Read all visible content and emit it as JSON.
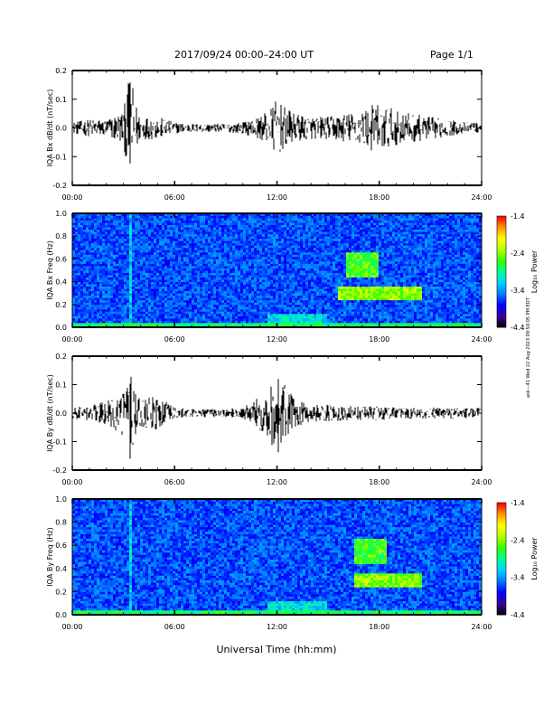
{
  "header": {
    "date_range": "2017/09/24  00:00–24:00 UT",
    "page": "Page 1/1"
  },
  "stamp": "ask—41 Wed 22 Aug 2023 09:50:05 PM EDT",
  "x_axis": {
    "label": "Universal Time (hh:mm)",
    "ticks": [
      "00:00",
      "06:00",
      "12:00",
      "18:00",
      "24:00"
    ],
    "range_hours": [
      0,
      24
    ]
  },
  "colorbar": {
    "label": "Log₁₀ Power",
    "ticks": [
      "-1.4",
      "-2.4",
      "-3.4",
      "-4.4"
    ],
    "range": [
      -4.4,
      -1.4
    ],
    "colors": [
      "#000000",
      "#3c0096",
      "#0000ff",
      "#0078ff",
      "#00d2ff",
      "#00ff96",
      "#32ff00",
      "#b4ff00",
      "#ffff00",
      "#ff9600",
      "#ff0000"
    ]
  },
  "chart_data": [
    {
      "type": "line",
      "ylabel": "IQA Bx dB/dt (nT/sec)",
      "ylim": [
        -0.2,
        0.2
      ],
      "yticks": [
        "0.2",
        "0.1",
        "0.0",
        "-0.1",
        "-0.2"
      ],
      "envelope": {
        "x_hours": [
          0,
          1,
          2,
          3,
          3.4,
          3.7,
          4,
          5,
          6,
          7,
          8,
          9,
          10,
          11,
          11.5,
          12,
          12.5,
          13,
          14,
          15,
          16,
          17,
          17.5,
          18,
          19,
          20,
          21,
          22,
          23,
          24
        ],
        "amplitude": [
          0.02,
          0.03,
          0.03,
          0.06,
          0.2,
          0.09,
          0.04,
          0.04,
          0.02,
          0.015,
          0.015,
          0.015,
          0.02,
          0.04,
          0.06,
          0.1,
          0.07,
          0.05,
          0.04,
          0.04,
          0.05,
          0.06,
          0.08,
          0.09,
          0.06,
          0.05,
          0.04,
          0.03,
          0.02,
          0.02
        ]
      }
    },
    {
      "type": "heatmap",
      "ylabel": "IQA Bx Freq (Hz)",
      "ylim": [
        0,
        1.0
      ],
      "yticks": [
        "1.0",
        "0.8",
        "0.6",
        "0.4",
        "0.2",
        "0.0"
      ],
      "features": [
        {
          "x_hours": [
            16.0,
            18.0
          ],
          "y_hz": [
            0.45,
            0.65
          ],
          "log_power": -2.6
        },
        {
          "x_hours": [
            15.5,
            20.5
          ],
          "y_hz": [
            0.25,
            0.35
          ],
          "log_power": -2.4
        },
        {
          "x_hours": [
            11.5,
            15.0
          ],
          "y_hz": [
            0.0,
            0.12
          ],
          "log_power": -3.1
        },
        {
          "x_hours": [
            3.3,
            3.5
          ],
          "y_hz": [
            0.0,
            1.0
          ],
          "log_power": -3.2
        },
        {
          "x_hours": [
            0.0,
            24.0
          ],
          "y_hz": [
            0.0,
            0.04
          ],
          "log_power": -2.8
        }
      ]
    },
    {
      "type": "line",
      "ylabel": "IQA By dB/dt (nT/sec)",
      "ylim": [
        -0.2,
        0.2
      ],
      "yticks": [
        "0.2",
        "0.1",
        "0.0",
        "-0.1",
        "-0.2"
      ],
      "envelope": {
        "x_hours": [
          0,
          1,
          2,
          3,
          3.4,
          3.7,
          4,
          5,
          6,
          7,
          8,
          9,
          10,
          11,
          11.5,
          12,
          12.5,
          13,
          14,
          15,
          16,
          17,
          18,
          19,
          20,
          21,
          22,
          23,
          24
        ],
        "amplitude": [
          0.02,
          0.03,
          0.04,
          0.08,
          0.2,
          0.1,
          0.05,
          0.06,
          0.02,
          0.015,
          0.015,
          0.015,
          0.02,
          0.06,
          0.09,
          0.15,
          0.1,
          0.05,
          0.03,
          0.03,
          0.025,
          0.025,
          0.025,
          0.02,
          0.02,
          0.02,
          0.02,
          0.02,
          0.02
        ]
      }
    },
    {
      "type": "heatmap",
      "ylabel": "IQA By Freq (Hz)",
      "ylim": [
        0,
        1.0
      ],
      "yticks": [
        "1.0",
        "0.8",
        "0.6",
        "0.4",
        "0.2",
        "0.0"
      ],
      "features": [
        {
          "x_hours": [
            16.5,
            18.5
          ],
          "y_hz": [
            0.45,
            0.65
          ],
          "log_power": -2.6
        },
        {
          "x_hours": [
            16.5,
            20.5
          ],
          "y_hz": [
            0.25,
            0.35
          ],
          "log_power": -2.4
        },
        {
          "x_hours": [
            11.5,
            15.0
          ],
          "y_hz": [
            0.0,
            0.12
          ],
          "log_power": -3.1
        },
        {
          "x_hours": [
            3.3,
            3.5
          ],
          "y_hz": [
            0.0,
            1.0
          ],
          "log_power": -3.2
        },
        {
          "x_hours": [
            0.0,
            24.0
          ],
          "y_hz": [
            0.0,
            0.04
          ],
          "log_power": -2.8
        }
      ]
    }
  ]
}
